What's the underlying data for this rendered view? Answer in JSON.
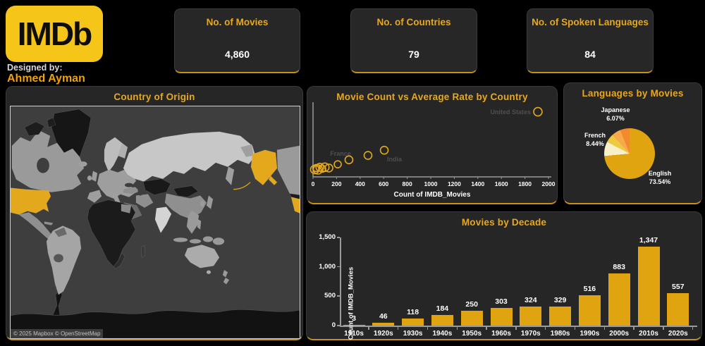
{
  "branding": {
    "logo_text": "IMDb",
    "designed_by_label": "Designed by:",
    "designer_name": "Ahmed Ayman"
  },
  "colors": {
    "accent_gold": "#E9A81B",
    "imdb_yellow": "#F5C518",
    "bar_gold": "#DFA40F",
    "highlight_country": "#E3A81C",
    "panel_bg": "#262626",
    "page_bg": "#000000"
  },
  "kpis": [
    {
      "label": "No. of Movies",
      "value": "4,860"
    },
    {
      "label": "No. of Countries",
      "value": "79"
    },
    {
      "label": "No. of Spoken Languages",
      "value": "84"
    }
  ],
  "map_panel": {
    "title": "Country of Origin",
    "attribution": "© 2025 Mapbox © OpenStreetMap",
    "highlighted_countries": [
      "United States"
    ]
  },
  "chart_data": [
    {
      "id": "country_scatter",
      "type": "scatter",
      "title": "Movie Count vs Average Rate by Country",
      "xlabel": "Count of IMDB_Movies",
      "xlim": [
        0,
        2070
      ],
      "x_ticks": [
        0,
        200,
        400,
        600,
        800,
        1000,
        1200,
        1400,
        1600,
        1800,
        2000
      ],
      "y_axis_labeled": false,
      "points": [
        {
          "label": "",
          "x": 15,
          "y_rel": 0.1,
          "r": 6
        },
        {
          "label": "",
          "x": 28,
          "y_rel": 0.12,
          "r": 5
        },
        {
          "label": "",
          "x": 42,
          "y_rel": 0.1,
          "r": 6.5
        },
        {
          "label": "",
          "x": 58,
          "y_rel": 0.13,
          "r": 5.5
        },
        {
          "label": "",
          "x": 78,
          "y_rel": 0.11,
          "r": 5
        },
        {
          "label": "",
          "x": 100,
          "y_rel": 0.13,
          "r": 6
        },
        {
          "label": "",
          "x": 135,
          "y_rel": 0.12,
          "r": 5.5
        },
        {
          "label": "France",
          "x": 210,
          "y_rel": 0.17,
          "r": 5
        },
        {
          "label": "",
          "x": 305,
          "y_rel": 0.23,
          "r": 5.5
        },
        {
          "label": "",
          "x": 467,
          "y_rel": 0.29,
          "r": 5.5
        },
        {
          "label": "India",
          "x": 605,
          "y_rel": 0.36,
          "r": 5.5
        },
        {
          "label": "United States",
          "x": 1910,
          "y_rel": 0.88,
          "r": 6
        }
      ]
    },
    {
      "id": "languages_pie",
      "type": "pie",
      "title": "Languages by Movies",
      "slices": [
        {
          "label": "English",
          "pct": 73.54,
          "color": "#DFA40F"
        },
        {
          "label": "",
          "pct": 0.6,
          "color": "#FCF8E3"
        },
        {
          "label": "French",
          "pct": 8.44,
          "color": "#F8F0C9"
        },
        {
          "label": "",
          "pct": 5.5,
          "color": "#EFC93F"
        },
        {
          "label": "",
          "pct": 5.85,
          "color": "#F7A94C"
        },
        {
          "label": "Japanese",
          "pct": 6.07,
          "color": "#F08A2A"
        }
      ]
    },
    {
      "id": "decade_bars",
      "type": "bar",
      "title": "Movies by Decade",
      "ylabel": "Count of IMDB_Movies",
      "ylim": [
        0,
        1500
      ],
      "y_ticks": [
        0,
        500,
        1000,
        1500
      ],
      "categories": [
        "1910s",
        "1920s",
        "1930s",
        "1940s",
        "1950s",
        "1960s",
        "1970s",
        "1980s",
        "1990s",
        "2000s",
        "2010s",
        "2020s"
      ],
      "values": [
        3,
        46,
        118,
        184,
        250,
        303,
        324,
        329,
        516,
        883,
        1347,
        557
      ],
      "value_labels": [
        "3",
        "46",
        "118",
        "184",
        "250",
        "303",
        "324",
        "329",
        "516",
        "883",
        "1,347",
        "557"
      ]
    }
  ]
}
